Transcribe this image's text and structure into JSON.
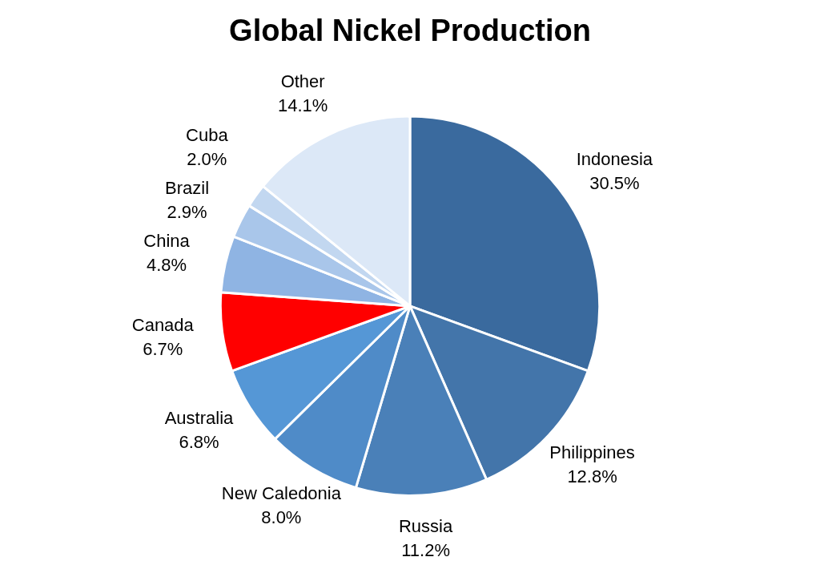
{
  "chart_data": {
    "type": "pie",
    "title": "Global Nickel Production",
    "categories": [
      "Indonesia",
      "Philippines",
      "Russia",
      "New Caledonia",
      "Australia",
      "Canada",
      "China",
      "Brazil",
      "Cuba",
      "Other"
    ],
    "values": [
      30.5,
      12.8,
      11.2,
      8.0,
      6.8,
      6.7,
      4.8,
      2.9,
      2.0,
      14.1
    ],
    "value_labels": [
      "30.5%",
      "12.8%",
      "11.2%",
      "8.0%",
      "6.8%",
      "6.7%",
      "4.8%",
      "2.9%",
      "2.0%",
      "14.1%"
    ],
    "colors": [
      "#3a6a9e",
      "#4375aa",
      "#4a80b8",
      "#4f8bc8",
      "#5597d6",
      "#ff0000",
      "#8fb4e3",
      "#a9c6ea",
      "#c2d7f0",
      "#dce8f7"
    ],
    "legend": false
  }
}
